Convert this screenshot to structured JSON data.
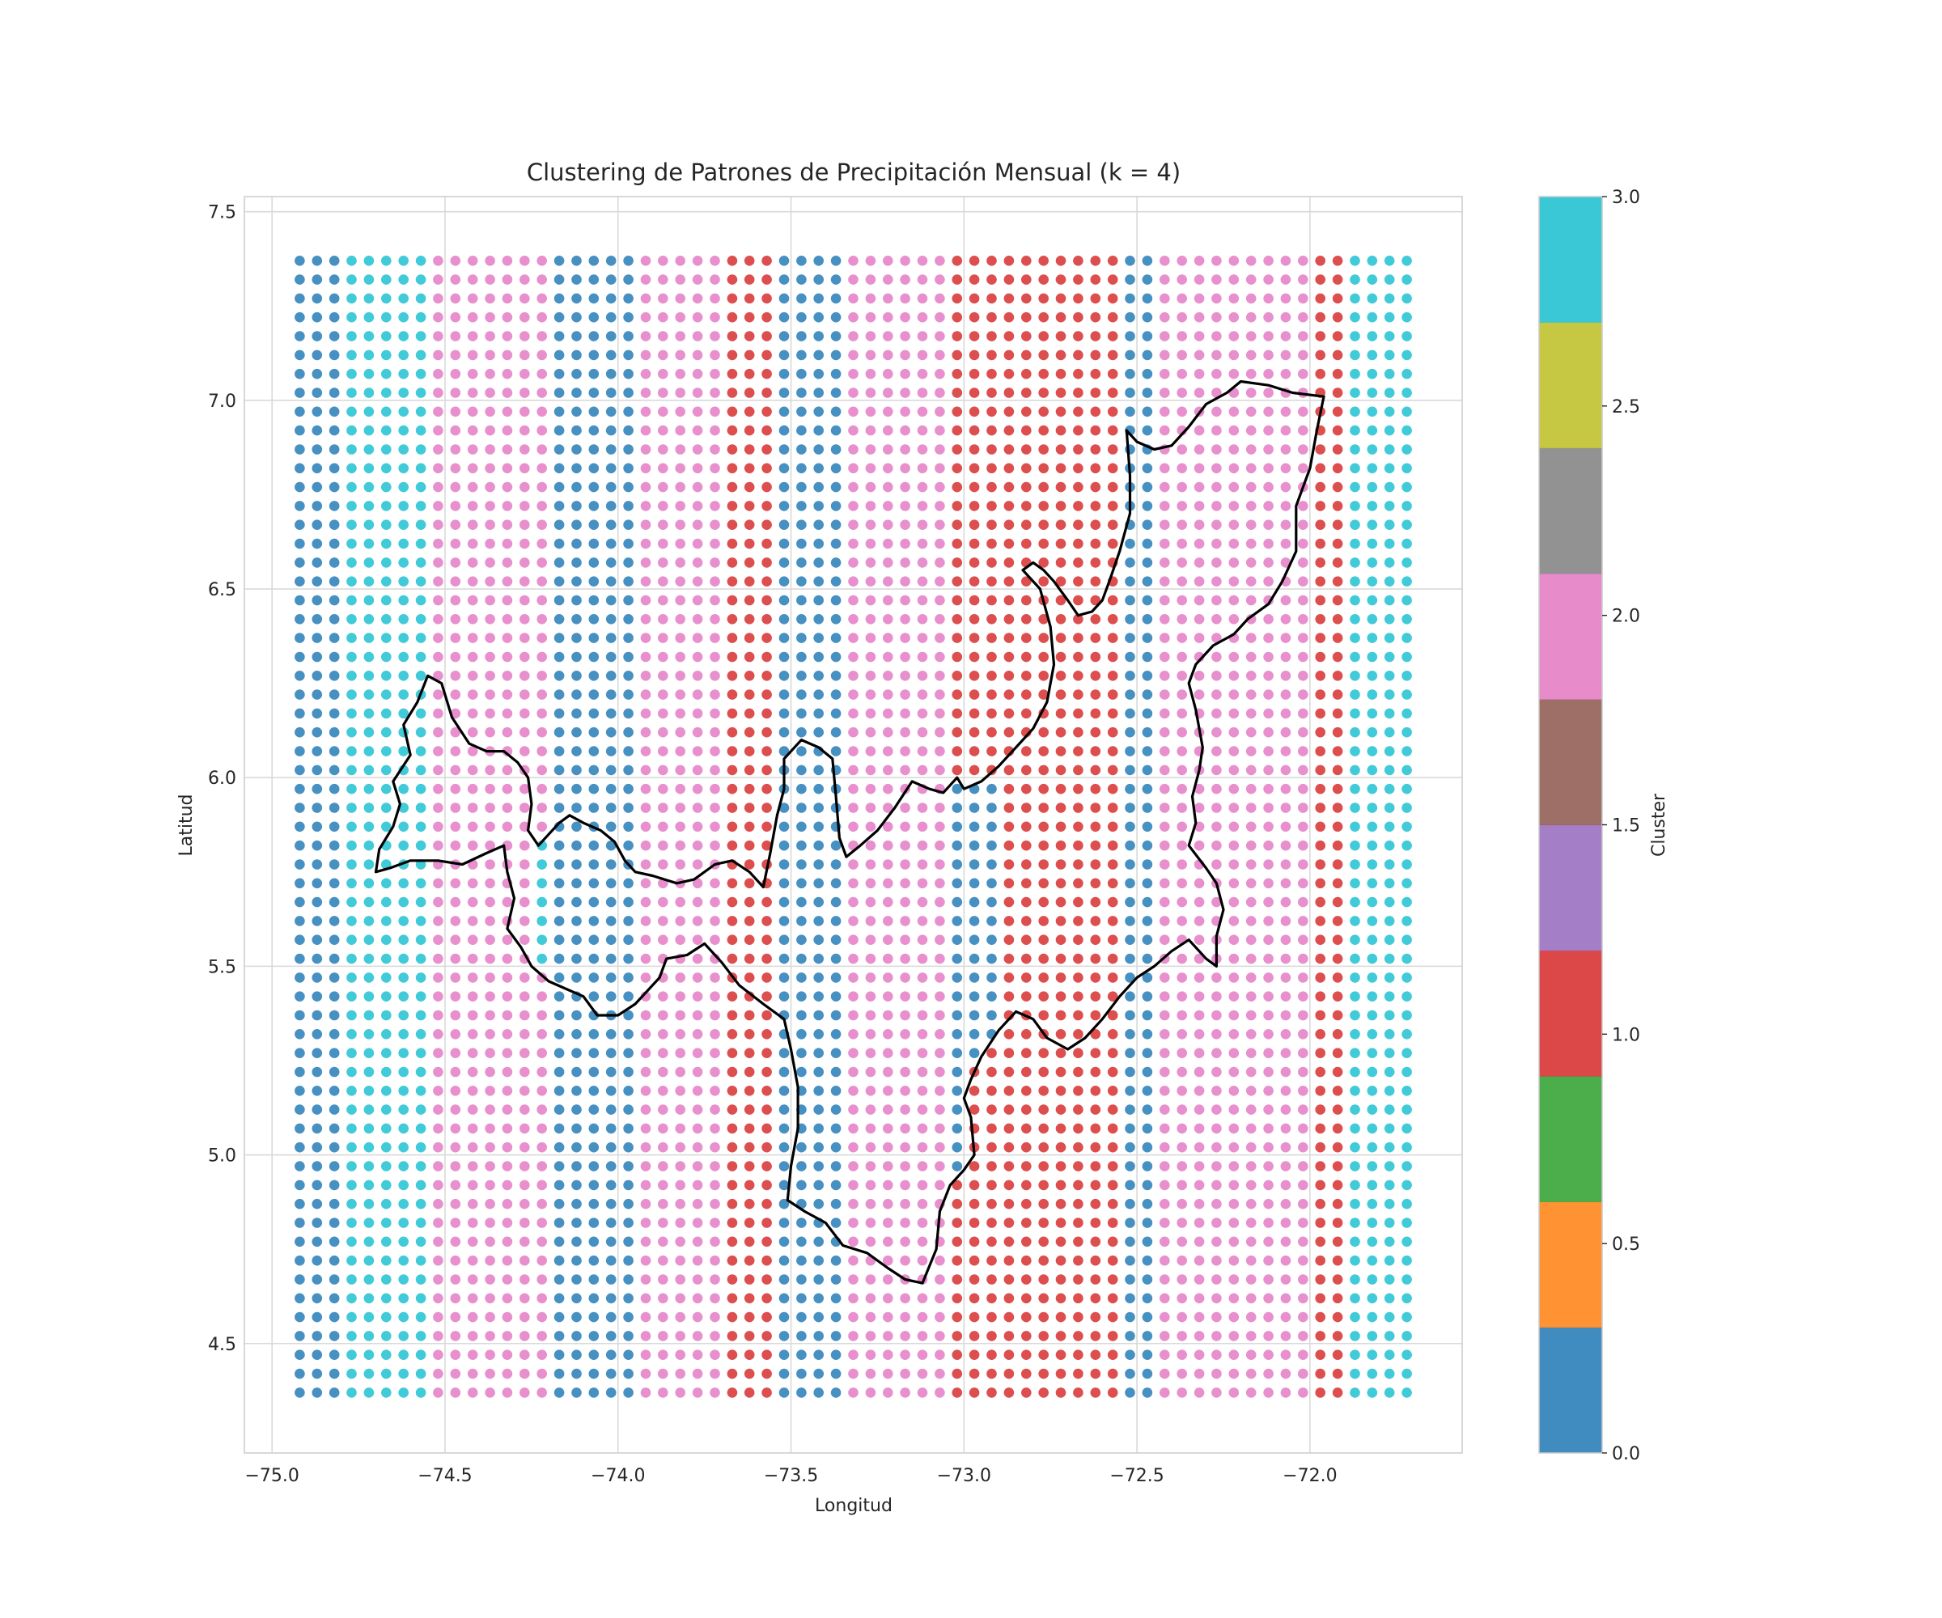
{
  "chart_data": {
    "type": "scatter",
    "title": "Clustering de Patrones de Precipitación Mensual (k = 4)",
    "xlabel": "Longitud",
    "ylabel": "Latitud",
    "xlim": [
      -75.08,
      -71.56
    ],
    "ylim": [
      4.21,
      7.54
    ],
    "x_ticks": [
      -75.0,
      -74.5,
      -74.0,
      -73.5,
      -73.0,
      -72.5,
      -72.0
    ],
    "x_tick_labels": [
      "−75.0",
      "−74.5",
      "−74.0",
      "−73.5",
      "−73.0",
      "−72.5",
      "−72.0"
    ],
    "y_ticks": [
      4.5,
      5.0,
      5.5,
      6.0,
      6.5,
      7.0,
      7.5
    ],
    "y_tick_labels": [
      "4.5",
      "5.0",
      "5.5",
      "6.0",
      "6.5",
      "7.0",
      "7.5"
    ],
    "grid": true,
    "grid_points": {
      "lon_min": -74.92,
      "lon_max": -71.72,
      "lon_step": 0.05,
      "lat_min": 4.37,
      "lat_max": 7.37,
      "lat_step": 0.05
    },
    "clusters": [
      0,
      1,
      2,
      3
    ],
    "cluster_colors": {
      "0": "#1f77b4",
      "1": "#d62728",
      "2": "#e377c2",
      "3": "#17becf"
    },
    "cluster_longitude_bands": [
      {
        "cluster": 0,
        "lon": [
          -74.92,
          -74.8
        ]
      },
      {
        "cluster": 3,
        "lon": [
          -74.8,
          -74.55
        ]
      },
      {
        "cluster": 2,
        "lon": [
          -74.55,
          -74.22
        ]
      },
      {
        "cluster": 0,
        "lon": [
          -74.22,
          -73.95
        ]
      },
      {
        "cluster": 2,
        "lon": [
          -73.95,
          -73.72
        ]
      },
      {
        "cluster": 1,
        "lon": [
          -73.72,
          -73.55
        ]
      },
      {
        "cluster": 0,
        "lon": [
          -73.55,
          -73.37
        ]
      },
      {
        "cluster": 2,
        "lon": [
          -73.37,
          -73.05
        ]
      },
      {
        "cluster": 1,
        "lon": [
          -73.05,
          -72.57
        ]
      },
      {
        "cluster": 0,
        "lon": [
          -72.57,
          -72.47
        ]
      },
      {
        "cluster": 2,
        "lon": [
          -72.47,
          -72.0
        ]
      },
      {
        "cluster": 1,
        "lon": [
          -72.0,
          -71.92
        ]
      },
      {
        "cluster": 3,
        "lon": [
          -71.92,
          -71.72
        ]
      }
    ],
    "boundary_lonlat": [
      [
        -71.96,
        7.01
      ],
      [
        -72.05,
        7.02
      ],
      [
        -72.12,
        7.04
      ],
      [
        -72.2,
        7.05
      ],
      [
        -72.24,
        7.02
      ],
      [
        -72.3,
        6.99
      ],
      [
        -72.35,
        6.93
      ],
      [
        -72.4,
        6.88
      ],
      [
        -72.45,
        6.87
      ],
      [
        -72.5,
        6.89
      ],
      [
        -72.53,
        6.92
      ],
      [
        -72.52,
        6.8
      ],
      [
        -72.52,
        6.7
      ],
      [
        -72.55,
        6.6
      ],
      [
        -72.58,
        6.52
      ],
      [
        -72.6,
        6.47
      ],
      [
        -72.63,
        6.44
      ],
      [
        -72.67,
        6.43
      ],
      [
        -72.7,
        6.47
      ],
      [
        -72.74,
        6.52
      ],
      [
        -72.77,
        6.55
      ],
      [
        -72.8,
        6.57
      ],
      [
        -72.83,
        6.55
      ],
      [
        -72.78,
        6.5
      ],
      [
        -72.75,
        6.4
      ],
      [
        -72.74,
        6.3
      ],
      [
        -72.76,
        6.2
      ],
      [
        -72.8,
        6.13
      ],
      [
        -72.85,
        6.08
      ],
      [
        -72.9,
        6.03
      ],
      [
        -72.95,
        5.99
      ],
      [
        -73.0,
        5.97
      ],
      [
        -73.02,
        6.0
      ],
      [
        -73.06,
        5.96
      ],
      [
        -73.1,
        5.97
      ],
      [
        -73.15,
        5.99
      ],
      [
        -73.2,
        5.92
      ],
      [
        -73.25,
        5.86
      ],
      [
        -73.3,
        5.82
      ],
      [
        -73.34,
        5.79
      ],
      [
        -73.36,
        5.84
      ],
      [
        -73.37,
        5.95
      ],
      [
        -73.38,
        6.05
      ],
      [
        -73.42,
        6.08
      ],
      [
        -73.47,
        6.1
      ],
      [
        -73.52,
        6.05
      ],
      [
        -73.52,
        5.97
      ],
      [
        -73.54,
        5.9
      ],
      [
        -73.56,
        5.8
      ],
      [
        -73.58,
        5.71
      ],
      [
        -73.62,
        5.75
      ],
      [
        -73.67,
        5.78
      ],
      [
        -73.72,
        5.77
      ],
      [
        -73.78,
        5.73
      ],
      [
        -73.83,
        5.72
      ],
      [
        -73.9,
        5.74
      ],
      [
        -73.95,
        5.75
      ],
      [
        -73.98,
        5.78
      ],
      [
        -74.01,
        5.83
      ],
      [
        -74.05,
        5.86
      ],
      [
        -74.1,
        5.88
      ],
      [
        -74.14,
        5.9
      ],
      [
        -74.17,
        5.88
      ],
      [
        -74.2,
        5.85
      ],
      [
        -74.23,
        5.82
      ],
      [
        -74.26,
        5.86
      ],
      [
        -74.25,
        5.93
      ],
      [
        -74.26,
        6.0
      ],
      [
        -74.29,
        6.04
      ],
      [
        -74.33,
        6.07
      ],
      [
        -74.38,
        6.07
      ],
      [
        -74.43,
        6.09
      ],
      [
        -74.48,
        6.16
      ],
      [
        -74.51,
        6.25
      ],
      [
        -74.55,
        6.27
      ],
      [
        -74.58,
        6.2
      ],
      [
        -74.62,
        6.14
      ],
      [
        -74.6,
        6.06
      ],
      [
        -74.65,
        5.99
      ],
      [
        -74.63,
        5.93
      ],
      [
        -74.65,
        5.87
      ],
      [
        -74.69,
        5.81
      ],
      [
        -74.7,
        5.75
      ],
      [
        -74.66,
        5.76
      ],
      [
        -74.6,
        5.78
      ],
      [
        -74.52,
        5.78
      ],
      [
        -74.45,
        5.77
      ],
      [
        -74.38,
        5.8
      ],
      [
        -74.33,
        5.82
      ],
      [
        -74.32,
        5.75
      ],
      [
        -74.3,
        5.68
      ],
      [
        -74.32,
        5.6
      ],
      [
        -74.28,
        5.55
      ],
      [
        -74.25,
        5.5
      ],
      [
        -74.2,
        5.46
      ],
      [
        -74.15,
        5.44
      ],
      [
        -74.1,
        5.42
      ],
      [
        -74.06,
        5.37
      ],
      [
        -74.0,
        5.37
      ],
      [
        -73.95,
        5.4
      ],
      [
        -73.88,
        5.47
      ],
      [
        -73.86,
        5.52
      ],
      [
        -73.8,
        5.53
      ],
      [
        -73.75,
        5.56
      ],
      [
        -73.7,
        5.51
      ],
      [
        -73.65,
        5.45
      ],
      [
        -73.58,
        5.4
      ],
      [
        -73.52,
        5.36
      ],
      [
        -73.5,
        5.28
      ],
      [
        -73.48,
        5.18
      ],
      [
        -73.48,
        5.07
      ],
      [
        -73.5,
        4.97
      ],
      [
        -73.51,
        4.88
      ],
      [
        -73.46,
        4.85
      ],
      [
        -73.4,
        4.82
      ],
      [
        -73.35,
        4.76
      ],
      [
        -73.28,
        4.74
      ],
      [
        -73.22,
        4.7
      ],
      [
        -73.17,
        4.67
      ],
      [
        -73.12,
        4.66
      ],
      [
        -73.08,
        4.75
      ],
      [
        -73.07,
        4.85
      ],
      [
        -73.04,
        4.92
      ],
      [
        -73.0,
        4.96
      ],
      [
        -72.97,
        5.0
      ],
      [
        -72.98,
        5.1
      ],
      [
        -73.0,
        5.15
      ],
      [
        -72.98,
        5.2
      ],
      [
        -72.95,
        5.26
      ],
      [
        -72.9,
        5.33
      ],
      [
        -72.85,
        5.38
      ],
      [
        -72.8,
        5.36
      ],
      [
        -72.76,
        5.31
      ],
      [
        -72.7,
        5.28
      ],
      [
        -72.65,
        5.31
      ],
      [
        -72.6,
        5.36
      ],
      [
        -72.55,
        5.42
      ],
      [
        -72.5,
        5.47
      ],
      [
        -72.45,
        5.5
      ],
      [
        -72.4,
        5.54
      ],
      [
        -72.35,
        5.57
      ],
      [
        -72.3,
        5.52
      ],
      [
        -72.27,
        5.5
      ],
      [
        -72.27,
        5.58
      ],
      [
        -72.25,
        5.65
      ],
      [
        -72.27,
        5.72
      ],
      [
        -72.3,
        5.76
      ],
      [
        -72.35,
        5.82
      ],
      [
        -72.33,
        5.88
      ],
      [
        -72.34,
        5.95
      ],
      [
        -72.32,
        6.02
      ],
      [
        -72.31,
        6.08
      ],
      [
        -72.33,
        6.18
      ],
      [
        -72.35,
        6.25
      ],
      [
        -72.33,
        6.3
      ],
      [
        -72.28,
        6.35
      ],
      [
        -72.22,
        6.38
      ],
      [
        -72.18,
        6.42
      ],
      [
        -72.12,
        6.46
      ],
      [
        -72.08,
        6.52
      ],
      [
        -72.04,
        6.6
      ],
      [
        -72.04,
        6.72
      ],
      [
        -72.0,
        6.82
      ],
      [
        -71.98,
        6.92
      ],
      [
        -71.96,
        7.01
      ]
    ]
  },
  "colorbar": {
    "label": "Cluster",
    "range": [
      0.0,
      3.0
    ],
    "ticks": [
      0.0,
      0.5,
      1.0,
      1.5,
      2.0,
      2.5,
      3.0
    ],
    "tick_labels": [
      "0.0",
      "0.5",
      "1.0",
      "1.5",
      "2.0",
      "2.5",
      "3.0"
    ],
    "segments": [
      "#1f77b4",
      "#ff7f0e",
      "#2ca02c",
      "#d62728",
      "#9467bd",
      "#8c564b",
      "#e377c2",
      "#7f7f7f",
      "#bcbd22",
      "#17becf"
    ]
  }
}
